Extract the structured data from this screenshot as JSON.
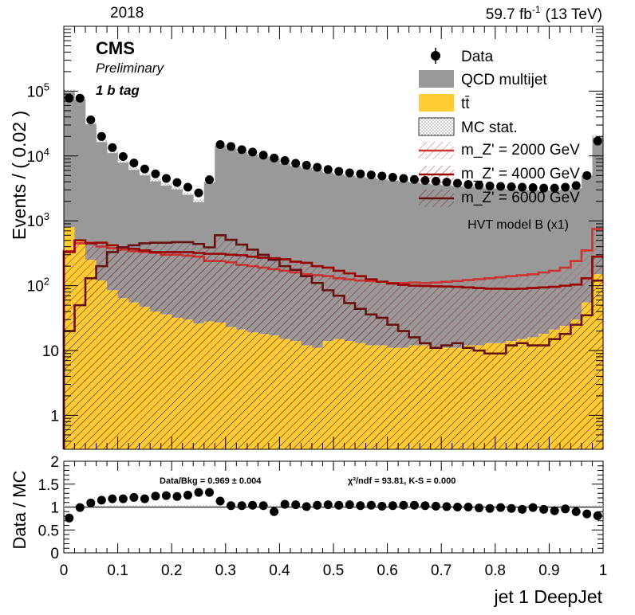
{
  "header": {
    "year": "2018",
    "lumi": "59.7 fb",
    "lumi_exp": "-1",
    "energy": "(13 TeV)"
  },
  "labels": {
    "cms": "CMS",
    "preliminary": "Preliminary",
    "category": "1 b tag",
    "model": "HVT model B (x1)"
  },
  "ratio_text": {
    "data_bkg": "Data/Bkg = 0.969 ± 0.004",
    "chi2": "χ²/ndf = 93.81,   K-S = 0.000"
  },
  "colors": {
    "qcd": "#999999",
    "ttbar": "#ffcc33",
    "sig2000": "#cc3333",
    "sig4000": "#990000",
    "sig6000": "#661111",
    "data": "#000000"
  },
  "chart_data": [
    {
      "type": "bar",
      "panel": "main",
      "ylabel": "Events / ( 0.02 )",
      "yscale": "log",
      "ylim": [
        0.3,
        1000000
      ],
      "xlim": [
        0,
        1
      ],
      "y_ticks": [
        "1",
        "10",
        "10^2",
        "10^3",
        "10^4",
        "10^5"
      ],
      "legend_position": "top-right",
      "bin_width": 0.02,
      "x": [
        0.01,
        0.03,
        0.05,
        0.07,
        0.09,
        0.11,
        0.13,
        0.15,
        0.17,
        0.19,
        0.21,
        0.23,
        0.25,
        0.27,
        0.29,
        0.31,
        0.33,
        0.35,
        0.37,
        0.39,
        0.41,
        0.43,
        0.45,
        0.47,
        0.49,
        0.51,
        0.53,
        0.55,
        0.57,
        0.59,
        0.61,
        0.63,
        0.65,
        0.67,
        0.69,
        0.71,
        0.73,
        0.75,
        0.77,
        0.79,
        0.81,
        0.83,
        0.85,
        0.87,
        0.89,
        0.91,
        0.93,
        0.95,
        0.97,
        0.99
      ],
      "series": [
        {
          "name": "Data",
          "style": "points",
          "values": [
            78000,
            78000,
            36000,
            20000,
            13500,
            9800,
            7800,
            6300,
            5300,
            4500,
            3900,
            3300,
            2700,
            4300,
            15000,
            14000,
            12500,
            11500,
            10300,
            9300,
            8500,
            7700,
            7200,
            6700,
            6200,
            5800,
            5500,
            5300,
            5100,
            4900,
            4700,
            4500,
            4350,
            4200,
            4100,
            3950,
            3800,
            3650,
            3550,
            3450,
            3400,
            3350,
            3300,
            3250,
            3200,
            3200,
            3300,
            3500,
            5000,
            17000
          ]
        },
        {
          "name": "QCD multijet",
          "style": "stack",
          "values": [
            100000,
            77000,
            32000,
            17000,
            11500,
            8200,
            6300,
            5200,
            4200,
            3600,
            3150,
            2600,
            2000,
            4000,
            15000,
            13500,
            12000,
            11000,
            10000,
            9500,
            8000,
            7300,
            6800,
            6300,
            5800,
            5400,
            5100,
            4900,
            4700,
            4500,
            4350,
            4200,
            4050,
            3900,
            3800,
            3680,
            3580,
            3480,
            3380,
            3280,
            3230,
            3180,
            3130,
            3080,
            3030,
            3030,
            3100,
            3300,
            5200,
            20000
          ]
        },
        {
          "name": "tt̄",
          "style": "stack",
          "values": [
            800,
            500,
            250,
            120,
            85,
            64,
            55,
            47,
            40,
            36,
            32,
            30,
            26,
            28,
            27,
            23,
            21,
            19,
            18,
            17,
            15,
            14,
            12,
            11,
            14,
            15,
            14,
            13,
            12,
            12,
            11,
            11,
            12,
            12,
            11,
            11,
            11,
            12,
            12,
            13,
            13,
            14,
            15,
            16,
            18,
            21,
            24,
            30,
            55,
            150
          ]
        },
        {
          "name": "m_Z' = 2000 GeV",
          "style": "step",
          "values": [
            340,
            450,
            460,
            400,
            380,
            360,
            340,
            330,
            320,
            300,
            300,
            290,
            280,
            240,
            240,
            230,
            210,
            200,
            190,
            180,
            170,
            160,
            150,
            145,
            140,
            130,
            125,
            120,
            118,
            115,
            110,
            110,
            112,
            110,
            112,
            115,
            118,
            122,
            126,
            130,
            135,
            140,
            145,
            150,
            160,
            170,
            190,
            240,
            350,
            750
          ]
        },
        {
          "name": "m_Z' = 4000 GeV",
          "style": "step",
          "values": [
            330,
            500,
            450,
            460,
            420,
            390,
            370,
            350,
            330,
            330,
            330,
            330,
            320,
            310,
            310,
            300,
            295,
            280,
            270,
            265,
            255,
            235,
            225,
            200,
            190,
            170,
            155,
            140,
            125,
            115,
            108,
            103,
            100,
            99,
            98,
            97,
            96,
            94,
            92,
            90,
            90,
            89,
            90,
            92,
            94,
            96,
            100,
            104,
            130,
            280
          ]
        },
        {
          "name": "m_Z' = 6000 GeV",
          "style": "step",
          "values": [
            20,
            50,
            130,
            200,
            330,
            390,
            420,
            450,
            460,
            460,
            470,
            470,
            440,
            390,
            600,
            510,
            430,
            360,
            300,
            250,
            200,
            175,
            140,
            110,
            85,
            70,
            54,
            44,
            36,
            32,
            25,
            20,
            16,
            13,
            11,
            12,
            13,
            11,
            10,
            9,
            9,
            12,
            13,
            12,
            12,
            15,
            18,
            25,
            35,
            120
          ]
        }
      ],
      "legend_entries": [
        "Data",
        "QCD multijet",
        "tt̄",
        "MC stat.",
        "m_Z' = 2000 GeV",
        "m_Z' = 4000 GeV",
        "m_Z' = 6000 GeV"
      ]
    },
    {
      "type": "scatter",
      "panel": "ratio",
      "xlabel": "jet 1 DeepJet",
      "ylabel": "Data / MC",
      "ylim": [
        0,
        2
      ],
      "xlim": [
        0,
        1
      ],
      "x_ticks": [
        "0",
        "0.1",
        "0.2",
        "0.3",
        "0.4",
        "0.5",
        "0.6",
        "0.7",
        "0.8",
        "0.9",
        "1"
      ],
      "y_ticks": [
        "0",
        "0.5",
        "1",
        "1.5",
        "2"
      ],
      "x": [
        0.01,
        0.03,
        0.05,
        0.07,
        0.09,
        0.11,
        0.13,
        0.15,
        0.17,
        0.19,
        0.21,
        0.23,
        0.25,
        0.27,
        0.29,
        0.31,
        0.33,
        0.35,
        0.37,
        0.39,
        0.41,
        0.43,
        0.45,
        0.47,
        0.49,
        0.51,
        0.53,
        0.55,
        0.57,
        0.59,
        0.61,
        0.63,
        0.65,
        0.67,
        0.69,
        0.71,
        0.73,
        0.75,
        0.77,
        0.79,
        0.81,
        0.83,
        0.85,
        0.87,
        0.89,
        0.91,
        0.93,
        0.95,
        0.97,
        0.99
      ],
      "values": [
        0.76,
        0.99,
        1.09,
        1.15,
        1.18,
        1.18,
        1.21,
        1.18,
        1.24,
        1.25,
        1.23,
        1.26,
        1.32,
        1.32,
        1.13,
        1.03,
        1.03,
        1.04,
        1.03,
        0.9,
        1.06,
        1.05,
        1.01,
        1.04,
        1.05,
        1.04,
        1.05,
        1.03,
        1.04,
        1.02,
        1.03,
        1.04,
        1.04,
        1.03,
        1.02,
        1.01,
        1.0,
        1.0,
        0.98,
        0.97,
        0.99,
        0.97,
        0.95,
        0.99,
        0.95,
        0.92,
        0.96,
        0.9,
        0.85,
        0.81
      ]
    }
  ]
}
